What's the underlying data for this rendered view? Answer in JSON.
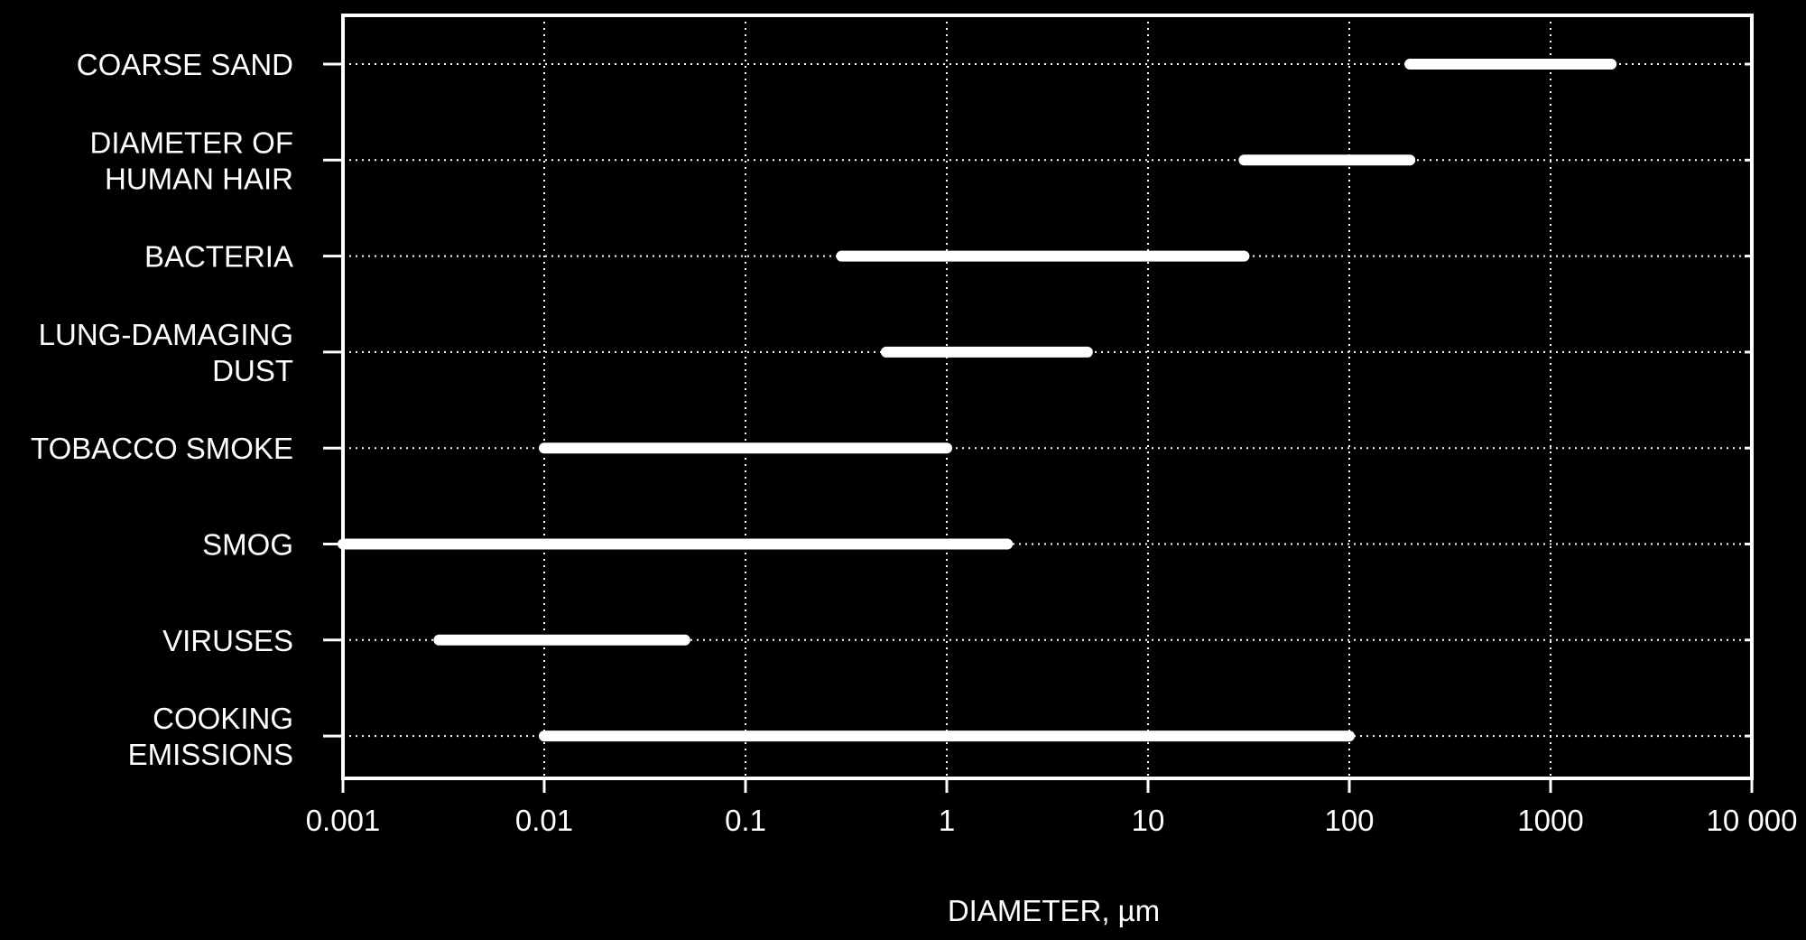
{
  "chart_data": {
    "type": "bar",
    "orientation": "horizontal-range",
    "x_scale": "log",
    "xlim": [
      0.001,
      10000
    ],
    "xlabel": "DIAMETER, µm",
    "ylabel": "",
    "title": "",
    "grid": true,
    "x_ticks": [
      {
        "value": 0.001,
        "label": "0.001"
      },
      {
        "value": 0.01,
        "label": "0.01"
      },
      {
        "value": 0.1,
        "label": "0.1"
      },
      {
        "value": 1,
        "label": "1"
      },
      {
        "value": 10,
        "label": "10"
      },
      {
        "value": 100,
        "label": "100"
      },
      {
        "value": 1000,
        "label": "1000"
      },
      {
        "value": 10000,
        "label": "10 000"
      }
    ],
    "categories": [
      {
        "lines": [
          "COARSE SAND"
        ],
        "min": 200,
        "max": 2000
      },
      {
        "lines": [
          "DIAMETER OF",
          "HUMAN HAIR"
        ],
        "min": 30,
        "max": 200
      },
      {
        "lines": [
          "BACTERIA"
        ],
        "min": 0.3,
        "max": 30
      },
      {
        "lines": [
          "LUNG-DAMAGING",
          "DUST"
        ],
        "min": 0.5,
        "max": 5
      },
      {
        "lines": [
          "TOBACCO SMOKE"
        ],
        "min": 0.01,
        "max": 1
      },
      {
        "lines": [
          "SMOG"
        ],
        "min": 0.001,
        "max": 2
      },
      {
        "lines": [
          "VIRUSES"
        ],
        "min": 0.003,
        "max": 0.05
      },
      {
        "lines": [
          "COOKING",
          "EMISSIONS"
        ],
        "min": 0.01,
        "max": 100
      }
    ],
    "colors": {
      "background": "#000000",
      "foreground": "#ffffff"
    }
  }
}
